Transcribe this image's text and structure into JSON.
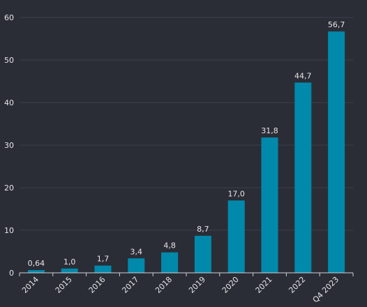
{
  "chart_data": {
    "type": "bar",
    "categories": [
      "2014",
      "2015",
      "2016",
      "2017",
      "2018",
      "2019",
      "2020",
      "2021",
      "2022",
      "Q4 2023"
    ],
    "values": [
      0.64,
      1.0,
      1.7,
      3.4,
      4.8,
      8.7,
      17.0,
      31.8,
      44.7,
      56.7
    ],
    "value_labels": [
      "0,64",
      "1,0",
      "1,7",
      "3,4",
      "4,8",
      "8,7",
      "17,0",
      "31,8",
      "44,7",
      "56,7"
    ],
    "title": "",
    "xlabel": "",
    "ylabel": "",
    "ylim": [
      0,
      60
    ],
    "yticks": [
      "0",
      "10",
      "20",
      "30",
      "40",
      "50",
      "60"
    ],
    "grid": true,
    "legend": "none",
    "colors": {
      "bar": "#0089ab",
      "background": "#2a2d36",
      "grid": "#3c4049",
      "axis": "#cfd2d6",
      "text": "#e6e6e6"
    }
  }
}
